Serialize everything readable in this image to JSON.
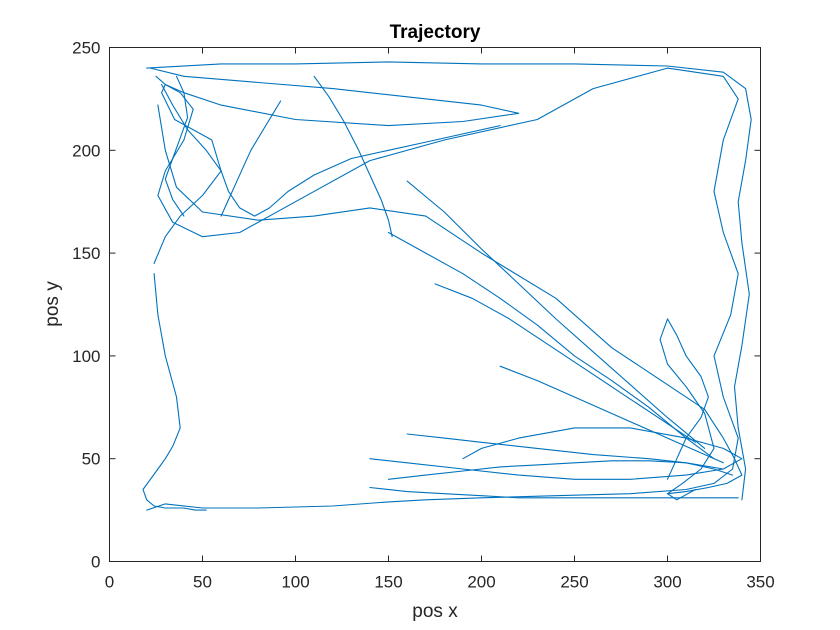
{
  "chart_data": {
    "type": "line",
    "title": "Trajectory",
    "xlabel": "pos x",
    "ylabel": "pos y",
    "xlim": [
      0,
      350
    ],
    "ylim": [
      0,
      250
    ],
    "xticks": [
      "0",
      "50",
      "100",
      "150",
      "200",
      "250",
      "300",
      "350"
    ],
    "yticks": [
      "0",
      "50",
      "100",
      "150",
      "200",
      "250"
    ],
    "grid": false,
    "legend": "none",
    "color": "#0072BD",
    "series": [
      {
        "x": [
          25,
          30,
          38,
          45,
          40,
          30,
          26,
          34,
          50,
          70,
          100,
          140,
          180,
          230,
          260,
          300,
          330,
          338,
          330,
          325,
          330,
          338,
          334,
          325,
          330,
          338,
          335,
          325,
          310,
          280,
          240,
          200,
          170,
          150,
          120,
          80,
          50,
          30,
          20
        ],
        "y": [
          236,
          232,
          228,
          220,
          205,
          190,
          178,
          165,
          158,
          160,
          175,
          195,
          205,
          215,
          230,
          240,
          236,
          225,
          205,
          180,
          160,
          140,
          120,
          100,
          80,
          60,
          45,
          38,
          35,
          33,
          32,
          31,
          30,
          29,
          27,
          26,
          26,
          28,
          25
        ]
      },
      {
        "x": [
          22,
          40,
          80,
          120,
          160,
          200,
          220,
          190,
          150,
          100,
          60,
          40,
          30,
          28,
          35,
          55,
          60,
          50,
          38,
          30,
          24
        ],
        "y": [
          240,
          236,
          233,
          230,
          226,
          222,
          218,
          214,
          212,
          215,
          222,
          228,
          232,
          228,
          215,
          205,
          190,
          178,
          168,
          158,
          145
        ]
      },
      {
        "x": [
          20,
          60,
          100,
          150,
          200,
          250,
          300,
          330,
          342,
          345,
          342,
          338,
          340,
          344,
          340,
          336,
          338,
          342,
          340
        ],
        "y": [
          240,
          242,
          242,
          243,
          242,
          242,
          241,
          238,
          230,
          215,
          195,
          175,
          155,
          130,
          105,
          85,
          65,
          45,
          30
        ]
      },
      {
        "x": [
          26,
          30,
          36,
          50,
          80,
          110,
          140,
          170,
          200,
          240,
          270,
          300,
          320,
          330,
          336,
          340,
          332,
          322,
          310,
          300
        ],
        "y": [
          222,
          200,
          182,
          170,
          166,
          168,
          172,
          168,
          150,
          128,
          104,
          86,
          74,
          60,
          50,
          42,
          38,
          36,
          34,
          33
        ]
      },
      {
        "x": [
          28,
          34,
          42,
          52,
          60,
          64,
          70,
          78,
          86,
          96,
          110,
          130,
          150,
          170,
          190,
          210
        ],
        "y": [
          232,
          222,
          210,
          200,
          190,
          180,
          172,
          168,
          172,
          180,
          188,
          196,
          200,
          204,
          208,
          212
        ]
      },
      {
        "x": [
          24,
          26,
          30,
          36,
          38,
          34,
          30,
          26,
          22,
          18,
          20,
          24,
          30,
          34,
          40,
          46,
          52
        ],
        "y": [
          140,
          120,
          100,
          80,
          65,
          56,
          50,
          45,
          40,
          35,
          30,
          27,
          26,
          26,
          26,
          25,
          25
        ]
      },
      {
        "x": [
          190,
          200,
          220,
          250,
          280,
          310,
          330,
          340,
          330,
          310,
          280,
          250,
          220,
          190,
          160,
          140
        ],
        "y": [
          50,
          55,
          60,
          65,
          65,
          60,
          55,
          50,
          45,
          42,
          40,
          40,
          42,
          45,
          48,
          50
        ]
      },
      {
        "x": [
          140,
          160,
          180,
          200,
          220,
          240,
          260,
          280,
          300,
          320,
          338
        ],
        "y": [
          36,
          34,
          33,
          32,
          31,
          31,
          31,
          31,
          31,
          31,
          31
        ]
      },
      {
        "x": [
          150,
          170,
          190,
          210,
          230,
          250,
          270,
          290,
          310,
          325,
          335
        ],
        "y": [
          40,
          42,
          44,
          46,
          47,
          48,
          49,
          49,
          48,
          45,
          42
        ]
      },
      {
        "x": [
          160,
          180,
          200,
          230,
          260,
          290,
          310,
          330
        ],
        "y": [
          62,
          60,
          58,
          55,
          52,
          50,
          48,
          45
        ]
      },
      {
        "x": [
          300,
          305,
          310,
          318,
          322,
          318,
          310,
          305,
          300,
          296,
          300,
          310,
          320,
          325,
          318,
          308,
          300,
          305,
          315
        ],
        "y": [
          40,
          50,
          60,
          70,
          80,
          90,
          100,
          110,
          118,
          108,
          96,
          85,
          72,
          55,
          45,
          38,
          33,
          30,
          35
        ]
      },
      {
        "x": [
          150,
          170,
          190,
          210,
          230,
          250,
          270,
          290,
          310,
          325
        ],
        "y": [
          160,
          150,
          140,
          128,
          115,
          100,
          88,
          75,
          60,
          50
        ]
      },
      {
        "x": [
          160,
          180,
          200,
          220,
          240,
          260,
          280,
          300,
          320
        ],
        "y": [
          185,
          170,
          152,
          135,
          118,
          102,
          86,
          70,
          55
        ]
      },
      {
        "x": [
          175,
          195,
          215,
          235,
          255,
          275,
          295,
          315
        ],
        "y": [
          135,
          128,
          118,
          106,
          94,
          82,
          70,
          58
        ]
      },
      {
        "x": [
          210,
          230,
          250,
          270,
          290,
          310,
          330
        ],
        "y": [
          95,
          88,
          80,
          72,
          64,
          56,
          48
        ]
      },
      {
        "x": [
          60,
          64,
          68,
          72,
          76,
          80,
          84,
          88,
          92
        ],
        "y": [
          168,
          176,
          184,
          192,
          200,
          206,
          212,
          218,
          224
        ]
      },
      {
        "x": [
          110,
          118,
          126,
          134,
          140,
          146,
          150,
          152
        ],
        "y": [
          236,
          226,
          214,
          200,
          188,
          176,
          166,
          158
        ]
      },
      {
        "x": [
          36,
          40,
          42,
          38,
          34,
          30,
          34,
          40
        ],
        "y": [
          236,
          228,
          216,
          206,
          196,
          186,
          176,
          168
        ]
      }
    ]
  }
}
